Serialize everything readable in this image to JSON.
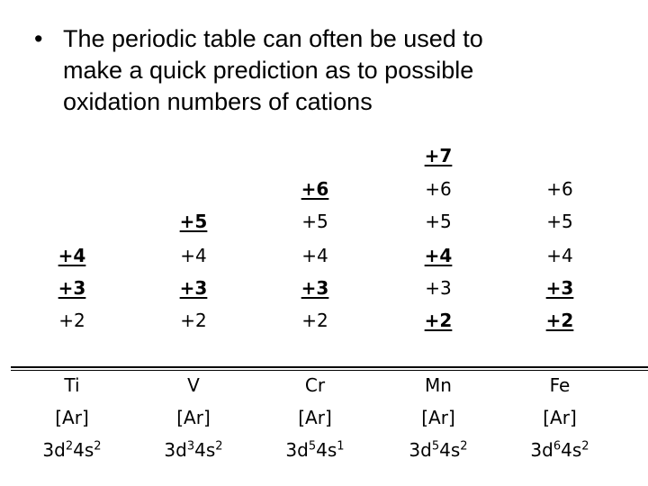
{
  "slide": {
    "bullet_symbol": "•",
    "bullet_lines": [
      "The periodic table can often be used to",
      "make a quick prediction as to possible",
      "oxidation numbers of cations"
    ]
  },
  "elements": [
    {
      "symbol": "Ti",
      "core": "[Ar]",
      "config": [
        {
          "orb": "3d",
          "n": "2"
        },
        {
          "orb": "4s",
          "n": "2"
        }
      ],
      "states": [
        {
          "text": "+4",
          "bold": true
        },
        {
          "text": "+3",
          "bold": true
        },
        {
          "text": "+2",
          "bold": false
        }
      ]
    },
    {
      "symbol": "V",
      "core": "[Ar]",
      "config": [
        {
          "orb": "3d",
          "n": "3"
        },
        {
          "orb": "4s",
          "n": "2"
        }
      ],
      "states": [
        {
          "text": "+5",
          "bold": true
        },
        {
          "text": "+4",
          "bold": false
        },
        {
          "text": "+3",
          "bold": true
        },
        {
          "text": "+2",
          "bold": false
        }
      ]
    },
    {
      "symbol": "Cr",
      "core": "[Ar]",
      "config": [
        {
          "orb": "3d",
          "n": "5"
        },
        {
          "orb": "4s",
          "n": "1"
        }
      ],
      "states": [
        {
          "text": "+6",
          "bold": true
        },
        {
          "text": "+5",
          "bold": false
        },
        {
          "text": "+4",
          "bold": false
        },
        {
          "text": "+3",
          "bold": true
        },
        {
          "text": "+2",
          "bold": false
        }
      ]
    },
    {
      "symbol": "Mn",
      "core": "[Ar]",
      "config": [
        {
          "orb": "3d",
          "n": "5"
        },
        {
          "orb": "4s",
          "n": "2"
        }
      ],
      "states": [
        {
          "text": "+7",
          "bold": true
        },
        {
          "text": "+6",
          "bold": false
        },
        {
          "text": "+5",
          "bold": false
        },
        {
          "text": "+4",
          "bold": true
        },
        {
          "text": "+3",
          "bold": false
        },
        {
          "text": "+2",
          "bold": true
        }
      ]
    },
    {
      "symbol": "Fe",
      "core": "[Ar]",
      "config": [
        {
          "orb": "3d",
          "n": "6"
        },
        {
          "orb": "4s",
          "n": "2"
        }
      ],
      "states": [
        {
          "text": "+6",
          "bold": false
        },
        {
          "text": "+5",
          "bold": false
        },
        {
          "text": "+4",
          "bold": false
        },
        {
          "text": "+3",
          "bold": true
        },
        {
          "text": "+2",
          "bold": true
        }
      ]
    }
  ]
}
